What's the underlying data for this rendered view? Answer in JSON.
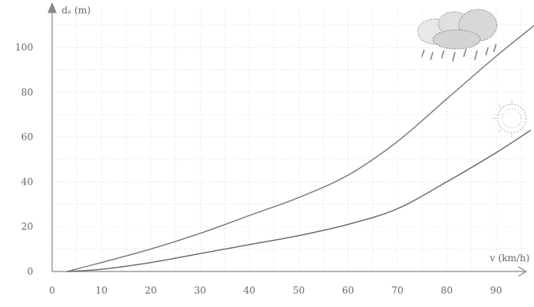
{
  "chart_data": {
    "type": "line",
    "xlabel": "v (km/h)",
    "ylabel": "dₐ (m)",
    "xlim": [
      0,
      100
    ],
    "ylim": [
      0,
      120
    ],
    "x_ticks": [
      {
        "value": 0,
        "label": "0"
      },
      {
        "value": 10,
        "label": "10"
      },
      {
        "value": 20,
        "label": "20"
      },
      {
        "value": 30,
        "label": "30"
      },
      {
        "value": 40,
        "label": "40"
      },
      {
        "value": 50,
        "label": "50"
      },
      {
        "value": 60,
        "label": "60"
      },
      {
        "value": 70,
        "label": "70"
      },
      {
        "value": 80,
        "label": "80"
      },
      {
        "value": 90,
        "label": "90"
      }
    ],
    "y_ticks": [
      {
        "value": 0,
        "label": "0"
      },
      {
        "value": 20,
        "label": "20"
      },
      {
        "value": 40,
        "label": "40"
      },
      {
        "value": 60,
        "label": "60"
      },
      {
        "value": 80,
        "label": "80"
      },
      {
        "value": 100,
        "label": "100"
      }
    ],
    "grid": true,
    "series": [
      {
        "icon": "rain-cloud-icon",
        "color": "#777777",
        "x": [
          3,
          10,
          20,
          30,
          40,
          50,
          60,
          70,
          80,
          90,
          99
        ],
        "y": [
          0,
          4,
          10,
          17,
          25,
          33,
          43,
          58,
          77,
          96,
          112
        ]
      },
      {
        "icon": "sun-icon",
        "color": "#666666",
        "x": [
          3,
          10,
          20,
          30,
          40,
          50,
          60,
          70,
          80,
          90,
          97
        ],
        "y": [
          0,
          1,
          4,
          8,
          12,
          16,
          21,
          28,
          40,
          53,
          63
        ]
      }
    ]
  }
}
